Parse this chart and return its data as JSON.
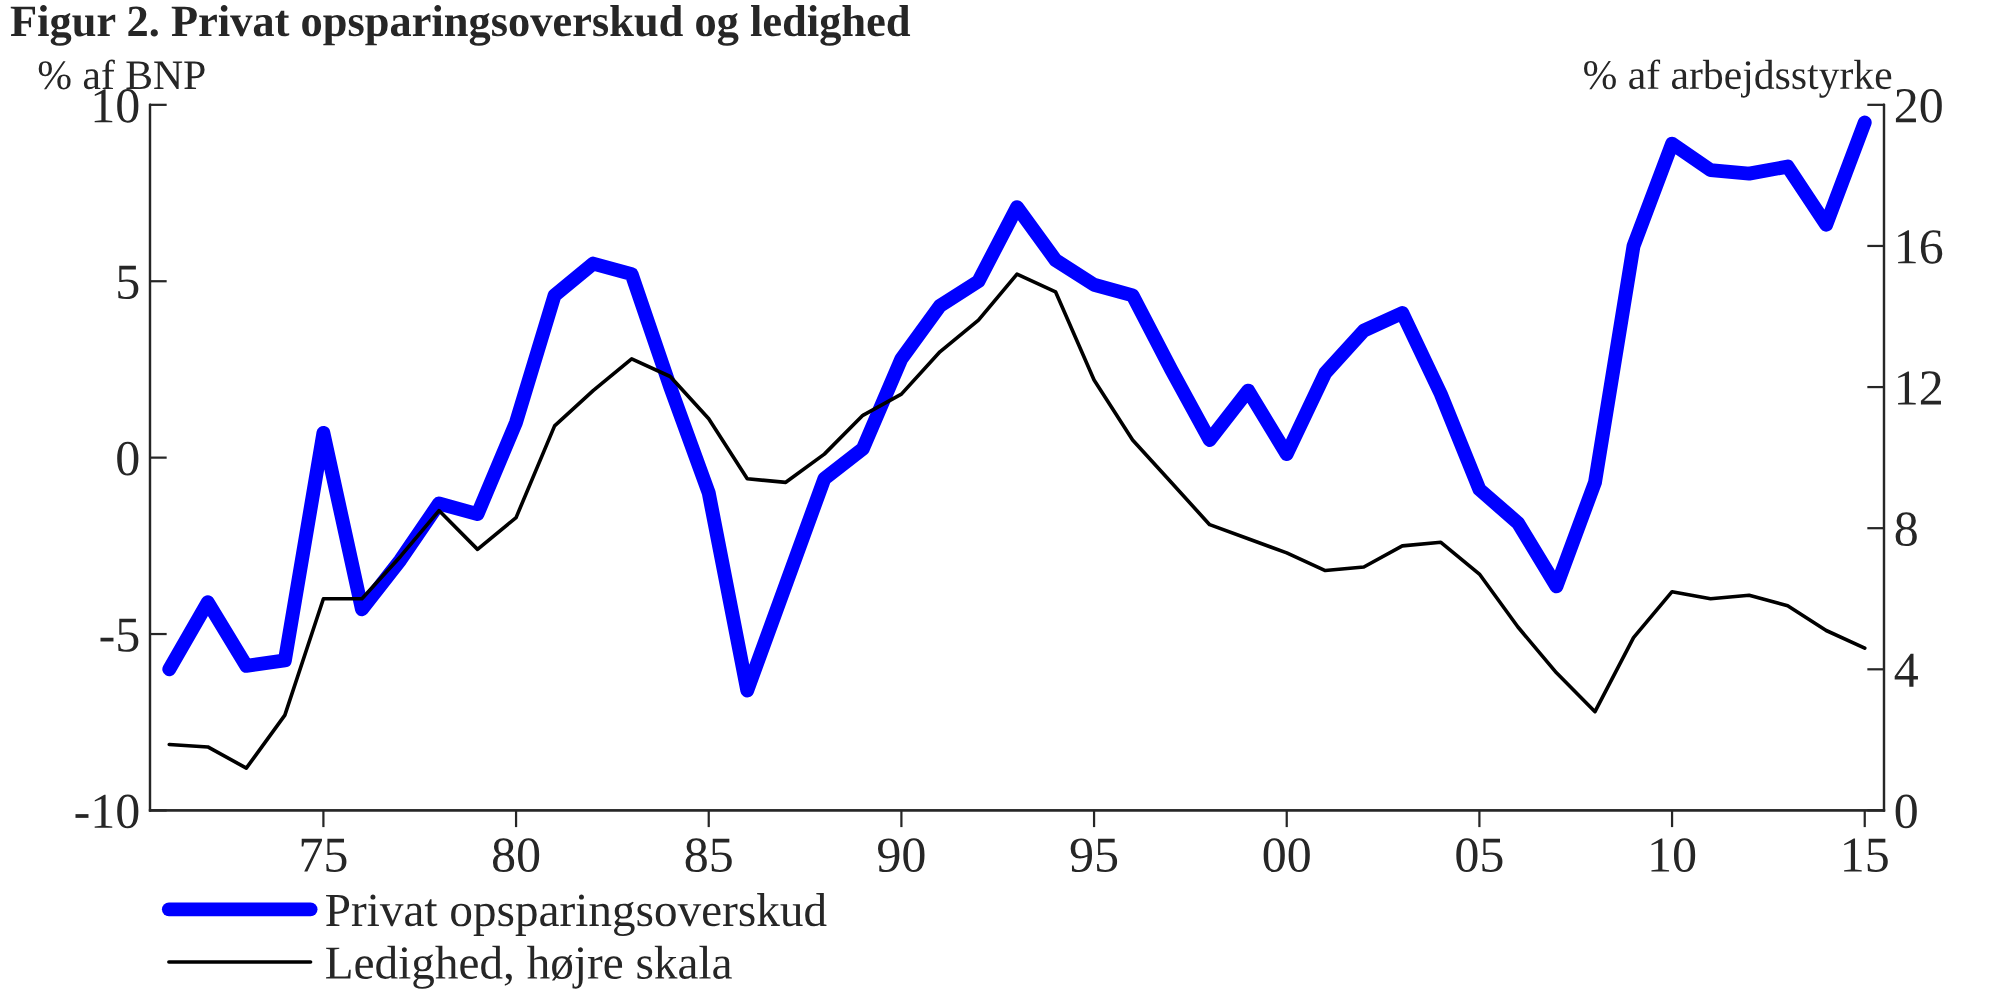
{
  "chart_data": {
    "type": "line",
    "title": "Figur 2. Privat opsparingsoverskud og ledighed",
    "ylabel": "% af BNP",
    "y2label": "% af arbejdsstyrke",
    "x": [
      1971,
      1972,
      1973,
      1974,
      1975,
      1976,
      1977,
      1978,
      1979,
      1980,
      1981,
      1982,
      1983,
      1984,
      1985,
      1986,
      1987,
      1988,
      1989,
      1990,
      1991,
      1992,
      1993,
      1994,
      1995,
      1996,
      1997,
      1998,
      1999,
      2000,
      2001,
      2002,
      2003,
      2004,
      2005,
      2006,
      2007,
      2008,
      2009,
      2010,
      2011,
      2012,
      2013,
      2014,
      2015
    ],
    "series": [
      {
        "name": "Privat opsparingsoverskud",
        "color": "#0000ff",
        "values": [
          -6.0,
          -4.1,
          -5.9,
          -5.75,
          0.7,
          -4.3,
          -2.9,
          -1.3,
          -1.6,
          1.0,
          4.6,
          5.5,
          5.2,
          2.0,
          -1.0,
          -6.6,
          -3.6,
          -0.6,
          0.25,
          2.8,
          4.3,
          5.0,
          7.1,
          5.6,
          4.9,
          4.6,
          2.5,
          0.5,
          1.9,
          0.1,
          2.4,
          3.6,
          4.1,
          1.8,
          -0.9,
          -1.85,
          -3.65,
          -0.7,
          6.0,
          8.9,
          8.15,
          8.05,
          8.25,
          6.6,
          9.5
        ]
      },
      {
        "name": "Ledighed, højre skala",
        "color": "#000000",
        "axis": "y2",
        "values": [
          1.87,
          1.8,
          1.2,
          2.7,
          6.0,
          6.0,
          7.2,
          8.5,
          7.4,
          8.3,
          10.9,
          11.9,
          12.8,
          12.3,
          11.1,
          9.4,
          9.3,
          10.1,
          11.2,
          11.8,
          13.0,
          13.9,
          15.2,
          14.7,
          12.2,
          10.5,
          9.3,
          8.1,
          7.7,
          7.3,
          6.8,
          6.9,
          7.5,
          7.6,
          6.7,
          5.2,
          3.9,
          2.8,
          4.9,
          6.2,
          6.0,
          6.1,
          5.8,
          5.1,
          4.6
        ]
      }
    ],
    "xlim": [
      1970.5,
      2015.5
    ],
    "xticks": [
      {
        "value": 1975,
        "label": "75"
      },
      {
        "value": 1980,
        "label": "80"
      },
      {
        "value": 1985,
        "label": "85"
      },
      {
        "value": 1990,
        "label": "90"
      },
      {
        "value": 1995,
        "label": "95"
      },
      {
        "value": 2000,
        "label": "00"
      },
      {
        "value": 2005,
        "label": "05"
      },
      {
        "value": 2010,
        "label": "10"
      },
      {
        "value": 2015,
        "label": "15"
      }
    ],
    "ylim": [
      -10,
      10
    ],
    "yticks": [
      {
        "value": -10,
        "label": "-10"
      },
      {
        "value": -5,
        "label": "-5"
      },
      0,
      5,
      10
    ],
    "y2lim": [
      0,
      20
    ],
    "y2ticks": [
      0,
      4,
      8,
      12,
      16,
      20
    ],
    "grid": false,
    "legend": "bottom left"
  }
}
